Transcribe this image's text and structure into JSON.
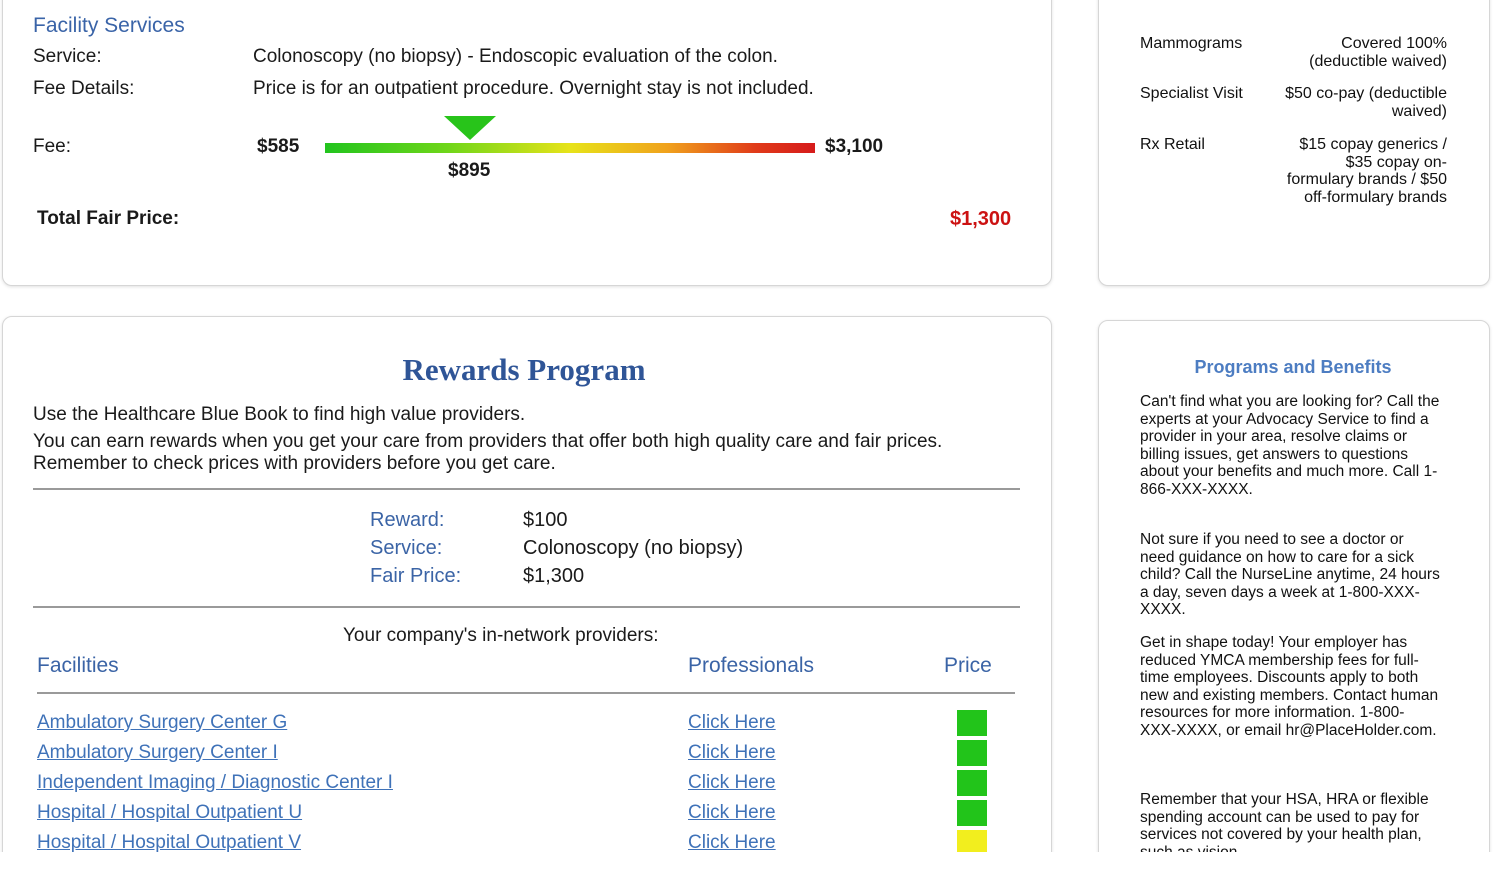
{
  "facility": {
    "heading": "Facility Services",
    "service_label": "Service:",
    "service_value": "Colonoscopy (no biopsy) - Endoscopic evaluation of the colon.",
    "fee_details_label": "Fee Details:",
    "fee_details_value": "Price is for an outpatient procedure. Overnight stay is not included.",
    "fee_label": "Fee:",
    "fee_min": "$585",
    "fee_max": "$3,100",
    "fee_marker": "$895",
    "fee_marker_fraction": 0.295,
    "total_label": "Total Fair Price:",
    "total_value": "$1,300",
    "total_color": "#cc1212"
  },
  "coverage": {
    "items": [
      {
        "name": "Mammograms",
        "value": "Covered 100% (deductible waived)"
      },
      {
        "name": "Specialist Visit",
        "value": "$50 co-pay (deductible waived)"
      },
      {
        "name": "Rx Retail",
        "value": "$15 copay generics / $35 copay on-formulary brands / $50 off-formulary brands"
      }
    ]
  },
  "rewards": {
    "title": "Rewards Program",
    "intro1": "Use the Healthcare Blue Book to find high value providers.",
    "intro2": "You can earn rewards when you get your care from providers that offer both high quality care and fair prices. Remember to check prices with providers before you get care.",
    "reward_label": "Reward:",
    "reward_value": "$100",
    "service_label": "Service:",
    "service_value": "Colonoscopy (no biopsy)",
    "fair_label": "Fair Price:",
    "fair_value": "$1,300",
    "network_caption": "Your company's in-network providers:",
    "col_facilities": "Facilities",
    "col_professionals": "Professionals",
    "col_price": "Price",
    "providers": [
      {
        "name": "Ambulatory Surgery Center G",
        "link": "Click Here",
        "price_color": "#22c41a"
      },
      {
        "name": "Ambulatory Surgery Center I",
        "link": "Click Here",
        "price_color": "#22c41a"
      },
      {
        "name": "Independent Imaging / Diagnostic Center I",
        "link": "Click Here",
        "price_color": "#22c41a"
      },
      {
        "name": "Hospital / Hospital Outpatient U",
        "link": "Click Here",
        "price_color": "#22c41a"
      },
      {
        "name": "Hospital / Hospital Outpatient V",
        "link": "Click Here",
        "price_color": "#f2ee1e"
      }
    ]
  },
  "programs": {
    "title": "Programs and Benefits",
    "paragraphs": [
      "Can't find what you are looking for? Call the experts at your Advocacy Service to find a provider in your area, resolve claims or billing issues, get answers to questions about your benefits and much more. Call 1-866-XXX-XXXX.",
      "Not sure if you need to see a doctor or need guidance on how to care for a sick child? Call the NurseLine anytime, 24 hours a day, seven days a week at 1-800-XXX-XXXX.",
      "Get in shape today! Your employer has reduced YMCA membership fees for full-time employees. Discounts apply to both new and existing members. Contact human resources for more information. 1-800-XXX-XXXX, or email hr@PlaceHolder.com.",
      "Remember that your HSA, HRA or flexible spending account can be used to pay for services not covered by your health plan, such as vision"
    ]
  }
}
